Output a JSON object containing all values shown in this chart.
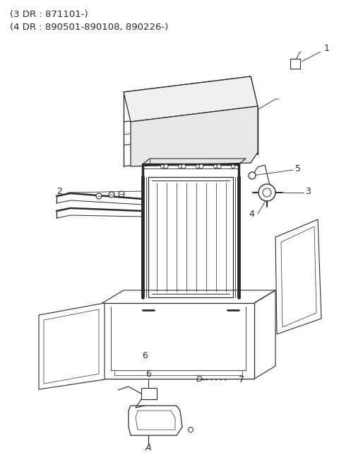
{
  "title_line1": "(3 DR : 871101-)",
  "title_line2": "(4 DR : 890501-890108, 890226-)",
  "bg_color": "#ffffff",
  "line_color": "#2a2a2a",
  "font_size_title": 9.5,
  "font_size_label": 9
}
